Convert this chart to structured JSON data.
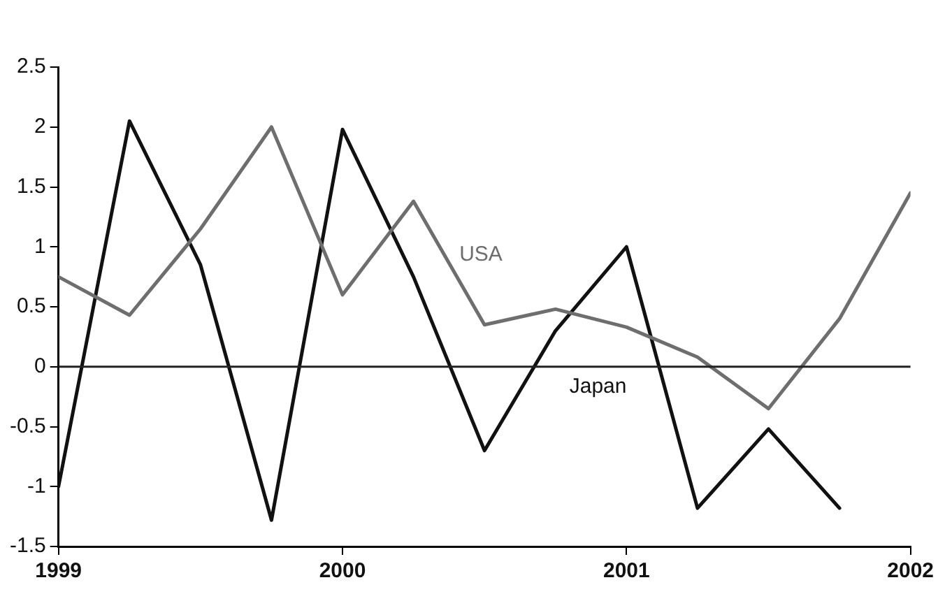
{
  "chart_data": {
    "type": "line",
    "x": [
      1999,
      1999.25,
      1999.5,
      1999.75,
      2000,
      2000.25,
      2000.5,
      2000.75,
      2001,
      2001.25,
      2001.5,
      2001.75,
      2002
    ],
    "series": [
      {
        "name": "USA",
        "color": "#6e6e6e",
        "values": [
          0.75,
          0.43,
          1.15,
          2.0,
          0.6,
          1.38,
          0.35,
          0.48,
          0.33,
          0.08,
          -0.35,
          0.4,
          1.45
        ]
      },
      {
        "name": "Japan",
        "color": "#111111",
        "values": [
          -1.0,
          2.05,
          0.85,
          -1.28,
          1.98,
          0.75,
          -0.7,
          0.3,
          1.0,
          -1.18,
          -0.52,
          -1.18,
          null
        ]
      }
    ],
    "xlim": [
      1999,
      2002
    ],
    "xticks": [
      1999,
      2000,
      2001,
      2002
    ],
    "ylim": [
      -1.5,
      2.5
    ],
    "yticks": [
      -1.5,
      -1,
      -0.5,
      0,
      0.5,
      1,
      1.5,
      2,
      2.5
    ],
    "ref_lines": [
      {
        "axis": "y",
        "value": 0,
        "color": "#222222"
      }
    ],
    "grid": false,
    "legend": false,
    "marker": "none",
    "line_style": "solid"
  }
}
